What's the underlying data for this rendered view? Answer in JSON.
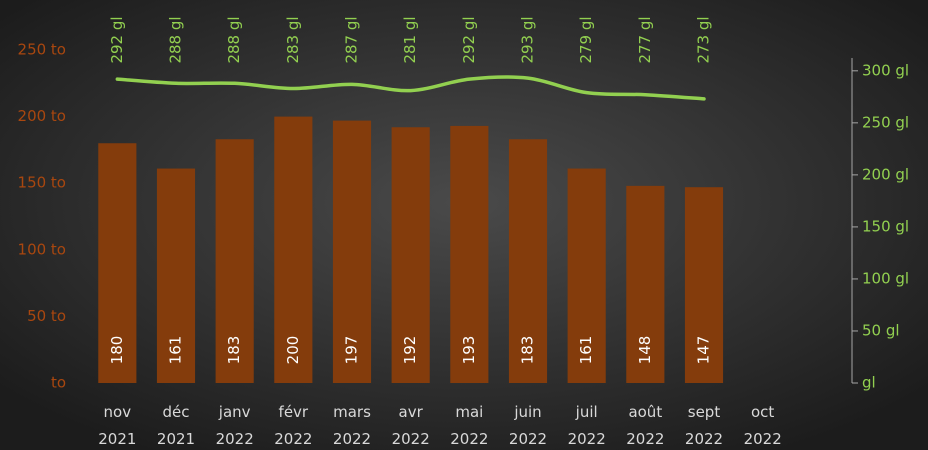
{
  "chart_data": {
    "type": "bar",
    "categories": [
      "nov 2021",
      "déc 2021",
      "janv 2022",
      "févr 2022",
      "mars 2022",
      "avr 2022",
      "mai 2022",
      "juin 2022",
      "juil 2022",
      "août 2022",
      "sept 2022",
      "oct 2022"
    ],
    "series": [
      {
        "name": "to",
        "type": "bar",
        "color": "#843c0c",
        "label_color": "#ffffff",
        "values": [
          180,
          161,
          183,
          200,
          197,
          192,
          193,
          183,
          161,
          148,
          147,
          null
        ]
      },
      {
        "name": "gl",
        "type": "line",
        "axis": "y2",
        "color": "#92d050",
        "values": [
          292,
          288,
          288,
          283,
          287,
          281,
          292,
          293,
          279,
          277,
          273,
          null
        ],
        "value_labels": [
          "292 gl",
          "288 gl",
          "288 gl",
          "283 gl",
          "287 gl",
          "281 gl",
          "292 gl",
          "293 gl",
          "279 gl",
          "277 gl",
          "273 gl",
          null
        ]
      }
    ],
    "ylim": [
      0,
      250
    ],
    "yticks": [
      {
        "value": 0,
        "label": "to"
      },
      {
        "value": 50,
        "label": "50 to"
      },
      {
        "value": 100,
        "label": "100 to"
      },
      {
        "value": 150,
        "label": "150 to"
      },
      {
        "value": 200,
        "label": "200 to"
      },
      {
        "value": 250,
        "label": "250 to"
      }
    ],
    "y2lim": [
      0,
      320
    ],
    "y2ticks": [
      {
        "value": 0,
        "label": "gl"
      },
      {
        "value": 50,
        "label": "50 gl"
      },
      {
        "value": 100,
        "label": "100 gl"
      },
      {
        "value": 150,
        "label": "150 gl"
      },
      {
        "value": 200,
        "label": "200 gl"
      },
      {
        "value": 250,
        "label": "250 gl"
      },
      {
        "value": 300,
        "label": "300 gl"
      }
    ],
    "ytick_color": "#a9470f",
    "y2tick_color": "#92d050",
    "grid": false
  }
}
